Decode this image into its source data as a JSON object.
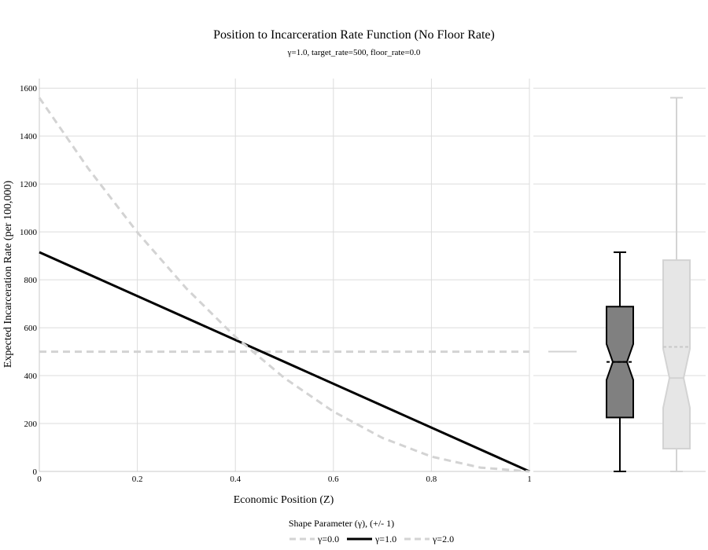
{
  "chart_data": {
    "type": "line",
    "title": "Position to Incarceration Rate Function (No Floor Rate)",
    "subtitle": "γ=1.0, target_rate=500, floor_rate=0.0",
    "xlabel": "Economic Position (Z)",
    "ylabel": "Expected Incarceration Rate (per 100,000)",
    "xlim": [
      0,
      1
    ],
    "ylim": [
      0,
      1640
    ],
    "x_ticks": [
      0,
      0.2,
      0.4,
      0.6,
      0.8,
      1
    ],
    "y_ticks": [
      0,
      200,
      400,
      600,
      800,
      1000,
      1200,
      1400,
      1600
    ],
    "grid": true,
    "legend": {
      "title": "Shape Parameter (γ), (+/- 1)",
      "placement": "bottom-center"
    },
    "series": [
      {
        "name": "γ=0.0",
        "style": "dashed",
        "color": "#d3d3d3",
        "x": [
          0,
          1
        ],
        "y": [
          500,
          500
        ]
      },
      {
        "name": "γ=1.0",
        "style": "solid",
        "color": "#000000",
        "x": [
          0,
          1
        ],
        "y": [
          915,
          0
        ]
      },
      {
        "name": "γ=2.0",
        "style": "dashed",
        "color": "#d3d3d3",
        "x": [
          0,
          0.1,
          0.2,
          0.3,
          0.4,
          0.5,
          0.6,
          0.7,
          0.8,
          0.9,
          1.0
        ],
        "y": [
          1560,
          1264,
          998,
          764,
          562,
          390,
          250,
          140,
          62,
          16,
          0
        ]
      }
    ],
    "marginal_boxplots": [
      {
        "series": "γ=0.0",
        "value": 500,
        "color": "#d3d3d3"
      },
      {
        "series": "γ=1.0",
        "color": "#000000",
        "fill": "#808080",
        "min": 0,
        "q1": 225,
        "median": 457,
        "q3": 688,
        "max": 915,
        "mean": 457,
        "notch_low": 382,
        "notch_high": 532
      },
      {
        "series": "γ=2.0",
        "color": "#d3d3d3",
        "fill": "#e6e6e6",
        "min": 0,
        "q1": 95,
        "median": 390,
        "q3": 882,
        "max": 1560,
        "mean": 520,
        "notch_low": 265,
        "notch_high": 512
      }
    ]
  }
}
